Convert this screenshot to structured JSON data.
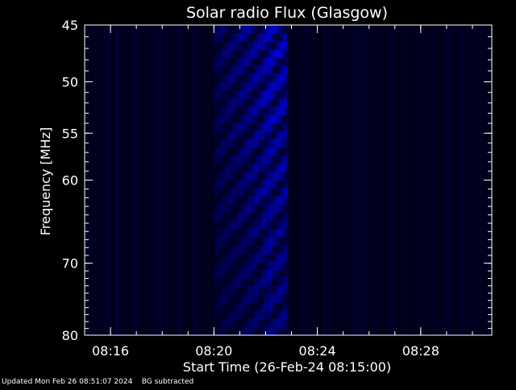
{
  "chart_data": {
    "type": "heatmap",
    "title": "Solar radio Flux (Glasgow)",
    "xlabel": "Start Time (26-Feb-24 08:15:00)",
    "ylabel": "Frequency [MHz]",
    "x_range_minutes": [
      "08:15:00",
      "08:30:45"
    ],
    "y_range_mhz": [
      45,
      80
    ],
    "y_scale": "log",
    "y_ticks": [
      45,
      50,
      55,
      60,
      70,
      80
    ],
    "y_tick_labels": [
      "45",
      "50",
      "55",
      "60",
      "70",
      "80"
    ],
    "x_ticks": [
      "08:16",
      "08:20",
      "08:24",
      "08:28"
    ],
    "colormap": [
      "#000000",
      "#0000ff"
    ],
    "burst": {
      "start": "08:20:00",
      "end": "08:22:50",
      "peak_time": "08:22:30",
      "freq_range_mhz": [
        45,
        80
      ],
      "relative_intensity": 0.85
    },
    "grid": false
  },
  "footer": {
    "updated": "Updated Mon Feb 26 08:51:07 2024",
    "note": "BG subtracted"
  },
  "colors": {
    "background": "#000000",
    "axis": "#ffffff",
    "signal": "#0000ff"
  }
}
